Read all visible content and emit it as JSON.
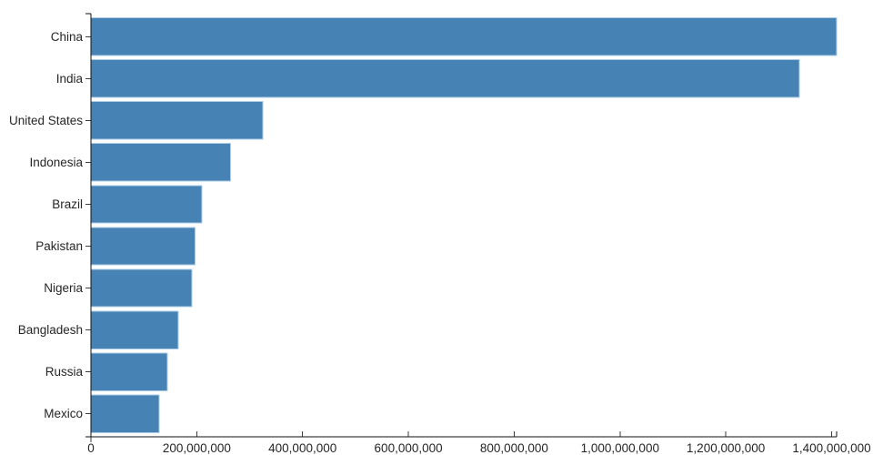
{
  "chart_data": {
    "type": "bar",
    "orientation": "horizontal",
    "title": "",
    "xlabel": "",
    "ylabel": "",
    "grid": false,
    "legend": false,
    "categories": [
      "China",
      "India",
      "United States",
      "Indonesia",
      "Brazil",
      "Pakistan",
      "Nigeria",
      "Bangladesh",
      "Russia",
      "Mexico"
    ],
    "values": [
      1409517397,
      1339180127,
      324459463,
      263991379,
      209288278,
      197015955,
      190886311,
      164669751,
      143989754,
      129163276
    ],
    "xlim": [
      0,
      1409517397
    ],
    "x_tick_values": [
      0,
      200000000,
      400000000,
      600000000,
      800000000,
      1000000000,
      1200000000,
      1400000000
    ],
    "x_tick_labels": [
      "0",
      "200,000,000",
      "400,000,000",
      "600,000,000",
      "800,000,000",
      "1,000,000,000",
      "1,200,000,000",
      "1,400,000,000"
    ],
    "colors": {
      "bar": "#4682b4",
      "bar_edge": "#aecde4",
      "axis_line": "#111111",
      "tick": "#3d3d3d",
      "text": "#262626",
      "background": "#ffffff"
    }
  }
}
